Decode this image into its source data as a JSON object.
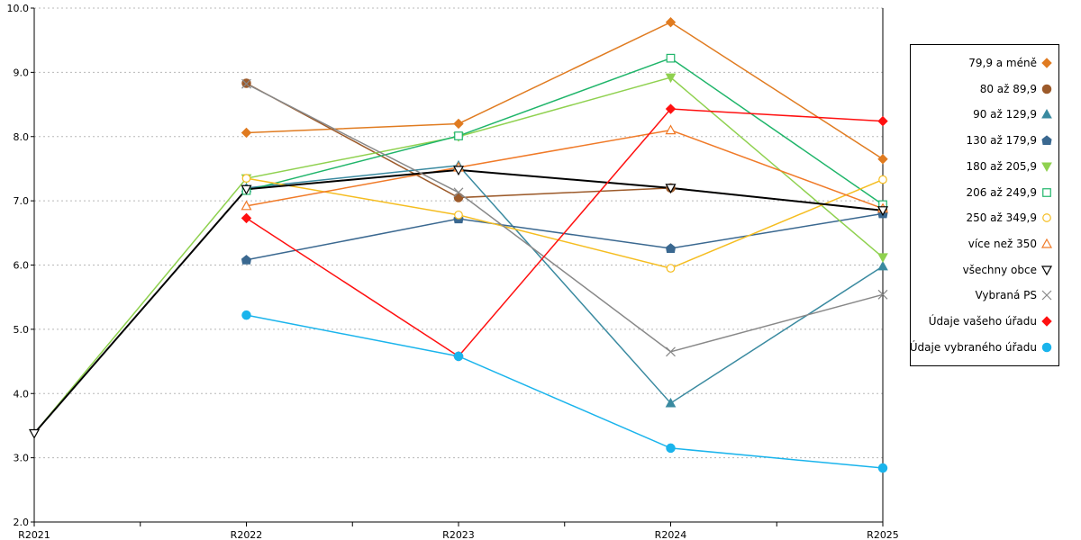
{
  "chart_data": {
    "type": "line",
    "categories": [
      "R2021",
      "R2022",
      "R2023",
      "R2024",
      "R2025"
    ],
    "ylim": [
      2.0,
      10.0
    ],
    "yticks": [
      "2.0",
      "3.0",
      "4.0",
      "5.0",
      "6.0",
      "7.0",
      "8.0",
      "9.0",
      "10.0"
    ],
    "grid": true,
    "legend_position": "right",
    "series": [
      {
        "name": "79,9 a méně",
        "color": "#e07b20",
        "marker": "diamond",
        "values": [
          null,
          8.06,
          8.2,
          9.78,
          7.65
        ]
      },
      {
        "name": "80 až 89,9",
        "color": "#9c5a2a",
        "marker": "circle",
        "values": [
          null,
          8.83,
          7.05,
          7.2,
          6.85
        ]
      },
      {
        "name": "90 až 129,9",
        "color": "#3a8aa0",
        "marker": "triangle-up",
        "values": [
          null,
          7.2,
          7.55,
          3.85,
          5.98
        ]
      },
      {
        "name": "130 až 179,9",
        "color": "#3a6890",
        "marker": "pentagon",
        "values": [
          null,
          6.08,
          6.72,
          6.26,
          6.8
        ]
      },
      {
        "name": "180 až 205,9",
        "color": "#8fd14f",
        "marker": "triangle-down",
        "values": [
          3.38,
          7.35,
          8.0,
          8.92,
          6.12
        ]
      },
      {
        "name": "206 až 249,9",
        "color": "#1fb56a",
        "marker": "square-open",
        "values": [
          null,
          7.16,
          8.01,
          9.22,
          6.94
        ]
      },
      {
        "name": "250 až 349,9",
        "color": "#f5bd20",
        "marker": "circle-open",
        "values": [
          null,
          7.35,
          6.78,
          5.95,
          7.33
        ]
      },
      {
        "name": "více než 350",
        "color": "#f07a28",
        "marker": "triangle-up-open",
        "values": [
          null,
          6.92,
          7.52,
          8.1,
          6.88
        ]
      },
      {
        "name": "všechny obce",
        "color": "#000000",
        "marker": "triangle-down-open",
        "values": [
          3.38,
          7.18,
          7.48,
          7.2,
          6.85
        ]
      },
      {
        "name": "Vybraná PS",
        "color": "#888888",
        "marker": "x",
        "values": [
          null,
          8.82,
          7.13,
          4.65,
          5.54
        ]
      },
      {
        "name": "Údaje vašeho úřadu",
        "color": "#ff1010",
        "marker": "diamond",
        "values": [
          null,
          6.73,
          4.58,
          8.43,
          8.24
        ]
      },
      {
        "name": "Údaje vybraného úřadu",
        "color": "#1ab4ec",
        "marker": "circle",
        "values": [
          null,
          5.22,
          4.58,
          3.15,
          2.84
        ]
      }
    ]
  }
}
